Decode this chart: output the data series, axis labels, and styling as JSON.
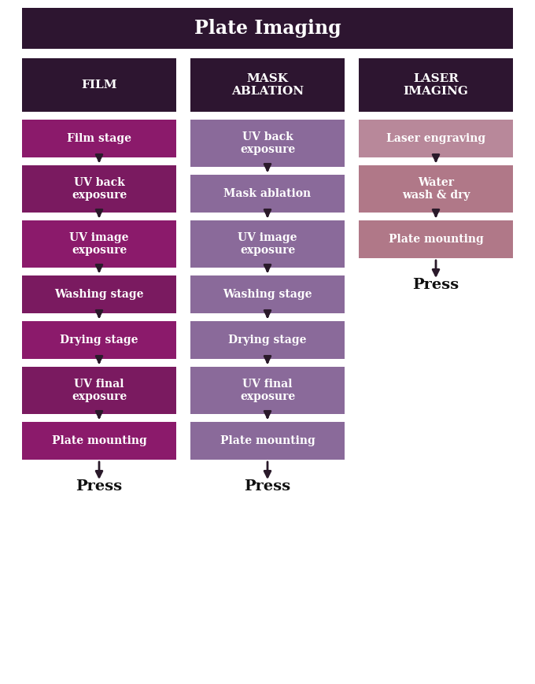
{
  "title": "Plate Imaging",
  "title_bg": "#2d1530",
  "title_color": "#ffffff",
  "title_fontsize": 17,
  "bg_color": "#ffffff",
  "columns": [
    {
      "header": "FILM",
      "header_bg": "#2d1530",
      "header_color": "#ffffff",
      "steps": [
        {
          "text": "Film stage",
          "bg": "#8b1a6b",
          "color": "#ffffff",
          "lines": 1
        },
        {
          "text": "UV back\nexposure",
          "bg": "#7a1a60",
          "color": "#ffffff",
          "lines": 2
        },
        {
          "text": "UV image\nexposure",
          "bg": "#8b1a6b",
          "color": "#ffffff",
          "lines": 2
        },
        {
          "text": "Washing stage",
          "bg": "#7a1a60",
          "color": "#ffffff",
          "lines": 1
        },
        {
          "text": "Drying stage",
          "bg": "#8b1a6b",
          "color": "#ffffff",
          "lines": 1
        },
        {
          "text": "UV final\nexposure",
          "bg": "#7a1a60",
          "color": "#ffffff",
          "lines": 2
        },
        {
          "text": "Plate mounting",
          "bg": "#8b1a6b",
          "color": "#ffffff",
          "lines": 1
        }
      ],
      "end_label": "Press"
    },
    {
      "header": "MASK\nABLATION",
      "header_bg": "#2d1530",
      "header_color": "#ffffff",
      "steps": [
        {
          "text": "UV back\nexposure",
          "bg": "#8a6a9a",
          "color": "#ffffff",
          "lines": 2
        },
        {
          "text": "Mask ablation",
          "bg": "#8a6a9a",
          "color": "#ffffff",
          "lines": 1
        },
        {
          "text": "UV image\nexposure",
          "bg": "#8a6a9a",
          "color": "#ffffff",
          "lines": 2
        },
        {
          "text": "Washing stage",
          "bg": "#8a6a9a",
          "color": "#ffffff",
          "lines": 1
        },
        {
          "text": "Drying stage",
          "bg": "#8a6a9a",
          "color": "#ffffff",
          "lines": 1
        },
        {
          "text": "UV final\nexposure",
          "bg": "#8a6a9a",
          "color": "#ffffff",
          "lines": 2
        },
        {
          "text": "Plate mounting",
          "bg": "#8a6a9a",
          "color": "#ffffff",
          "lines": 1
        }
      ],
      "end_label": "Press"
    },
    {
      "header": "LASER\nIMAGING",
      "header_bg": "#2d1530",
      "header_color": "#ffffff",
      "steps": [
        {
          "text": "Laser engraving",
          "bg": "#b8889a",
          "color": "#ffffff",
          "lines": 1
        },
        {
          "text": "Water\nwash & dry",
          "bg": "#b07888",
          "color": "#ffffff",
          "lines": 2
        },
        {
          "text": "Plate mounting",
          "bg": "#b07888",
          "color": "#ffffff",
          "lines": 1
        }
      ],
      "end_label": "Press"
    }
  ]
}
